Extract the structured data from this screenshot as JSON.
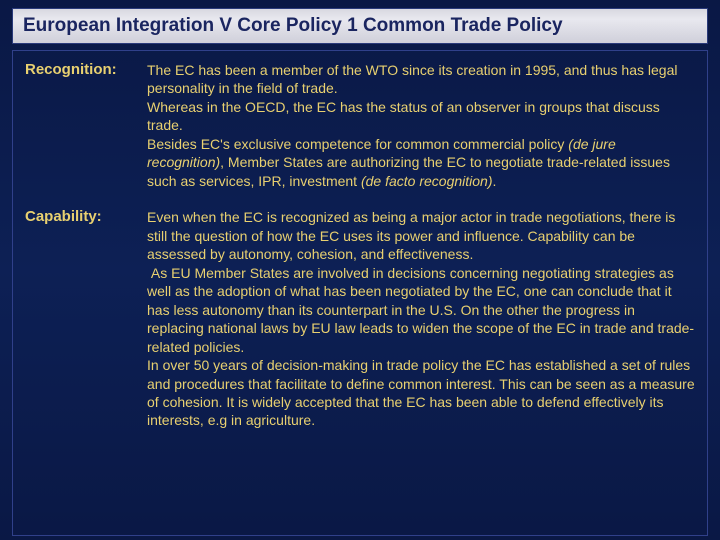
{
  "colors": {
    "background_top": "#0a1845",
    "background_mid": "#0d2055",
    "text": "#e8d070",
    "title_text": "#1a2560",
    "title_bg_light": "#e8e8ef",
    "title_bg_dark": "#d0d0da",
    "border": "#30408a"
  },
  "typography": {
    "title_fontsize": 19,
    "label_fontsize": 15,
    "body_fontsize": 14,
    "font_family": "Arial"
  },
  "title": "European Integration  V  Core Policy  1 Common Trade Policy",
  "sections": [
    {
      "label": "Recognition:",
      "body_html": "The EC has been a member of the WTO since its creation in 1995, and thus has legal personality in the field of trade.<br>Whereas in the OECD, the EC has the status of an observer in groups that discuss trade.<br>Besides EC's exclusive competence for common commercial policy <span class=\"italic\">(de jure recognition)</span>, Member States are authorizing the EC to negotiate trade-related issues such as services, IPR, investment <span class=\"italic\">(de facto recognition)</span>."
    },
    {
      "label": "Capability:",
      "body_html": "Even when the EC is recognized as being a major actor in trade negotiations, there is still the question of how the EC uses its power and influence.  Capability can be assessed by autonomy, cohesion, and effectiveness.<br>&nbsp;As EU Member States are involved in decisions concerning negotiating strategies as well as the adoption of what has been negotiated by the EC, one can conclude that it has less autonomy than its counterpart in the U.S. On the other the progress in replacing national laws by EU law leads to widen the scope of the EC in trade and trade-related policies.<br>In over 50 years of decision-making in trade policy the EC has established a set of rules and procedures that facilitate to define common interest. This can be seen as a measure of cohesion.  It is widely accepted that the EC has been able to defend effectively its interests, e.g in agriculture."
    }
  ]
}
